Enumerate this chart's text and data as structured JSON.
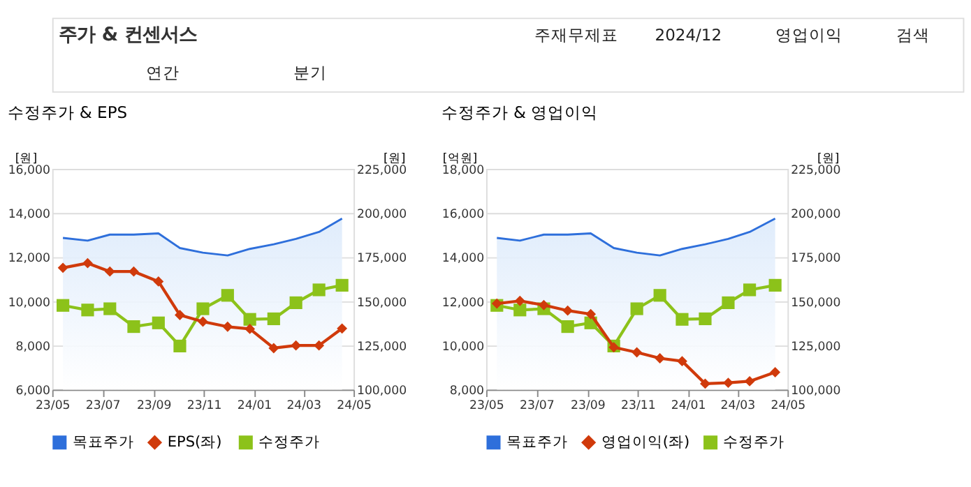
{
  "chart_data": [
    {
      "type": "line",
      "title": "수정주가 & EPS",
      "ylabel": "[원]",
      "y2label": "[원]",
      "annotations": [
        "주가 & 컨센서스",
        "주재무제표",
        "2024/12",
        "영업이익",
        "검색",
        "연간",
        "분기"
      ],
      "x": [
        "2023-05-14",
        "2023-06-13",
        "2023-07-10",
        "2023-08-08",
        "2023-09-07",
        "2023-10-03",
        "2023-10-31",
        "2023-11-30",
        "2023-12-27",
        "2024-01-25",
        "2024-02-21",
        "2024-03-20",
        "2024-04-17"
      ],
      "xlim": [
        "2023-05-01",
        "2024-05-01"
      ],
      "xticks": [
        {
          "value": "2023-05-01",
          "label": "23/05"
        },
        {
          "value": "2023-07-01",
          "label": "23/07"
        },
        {
          "value": "2023-09-01",
          "label": "23/09"
        },
        {
          "value": "2023-11-01",
          "label": "23/11"
        },
        {
          "value": "2024-01-01",
          "label": "24/01"
        },
        {
          "value": "2024-03-01",
          "label": "24/03"
        },
        {
          "value": "2024-05-01",
          "label": "24/05"
        }
      ],
      "ylim": [
        6000,
        16000
      ],
      "yticks": [
        {
          "value": 6000,
          "label": "6,000"
        },
        {
          "value": 8000,
          "label": "8,000"
        },
        {
          "value": 10000,
          "label": "10,000"
        },
        {
          "value": 12000,
          "label": "12,000"
        },
        {
          "value": 14000,
          "label": "14,000"
        },
        {
          "value": 16000,
          "label": "16,000"
        }
      ],
      "y2lim": [
        100000,
        225000
      ],
      "y2ticks": [
        {
          "value": 100000,
          "label": "100,000"
        },
        {
          "value": 125000,
          "label": "125,000"
        },
        {
          "value": 150000,
          "label": "150,000"
        },
        {
          "value": 175000,
          "label": "175,000"
        },
        {
          "value": 200000,
          "label": "200,000"
        },
        {
          "value": 225000,
          "label": "225,000"
        }
      ],
      "grid": "y",
      "legend": "bottom",
      "series": [
        {
          "name": "목표주가",
          "type": "area",
          "axis": "y2",
          "marker": "none",
          "color": "#2e6fdb",
          "values": [
            185900,
            184400,
            187800,
            187800,
            188500,
            180200,
            177600,
            176000,
            179700,
            182300,
            185400,
            189300,
            196900
          ]
        },
        {
          "name": "EPS(좌)",
          "type": "line",
          "axis": "y",
          "marker": "diamond",
          "color": "#d03a0b",
          "values": [
            11520,
            11730,
            11350,
            11350,
            10900,
            9380,
            9080,
            8850,
            8750,
            7880,
            8000,
            8000,
            8770
          ]
        },
        {
          "name": "수정주가",
          "type": "line",
          "axis": "y2",
          "marker": "square",
          "color": "#8cc21a",
          "values": [
            147700,
            145100,
            145800,
            135700,
            137800,
            124700,
            145800,
            153400,
            139800,
            140100,
            149200,
            156500,
            159100
          ]
        }
      ]
    },
    {
      "type": "line",
      "title": "수정주가 & 영업이익",
      "ylabel": "[억원]",
      "y2label": "[원]",
      "x": [
        "2023-05-14",
        "2023-06-11",
        "2023-07-10",
        "2023-08-08",
        "2023-09-05",
        "2023-10-03",
        "2023-10-31",
        "2023-11-28",
        "2023-12-25",
        "2024-01-22",
        "2024-02-19",
        "2024-03-16",
        "2024-04-16"
      ],
      "xlim": [
        "2023-05-01",
        "2024-05-01"
      ],
      "xticks": [
        {
          "value": "2023-05-01",
          "label": "23/05"
        },
        {
          "value": "2023-07-01",
          "label": "23/07"
        },
        {
          "value": "2023-09-01",
          "label": "23/09"
        },
        {
          "value": "2023-11-01",
          "label": "23/11"
        },
        {
          "value": "2024-01-01",
          "label": "24/01"
        },
        {
          "value": "2024-03-01",
          "label": "24/03"
        },
        {
          "value": "2024-05-01",
          "label": "24/05"
        }
      ],
      "ylim": [
        8000,
        18000
      ],
      "yticks": [
        {
          "value": 8000,
          "label": "8,000"
        },
        {
          "value": 10000,
          "label": "10,000"
        },
        {
          "value": 12000,
          "label": "12,000"
        },
        {
          "value": 14000,
          "label": "14,000"
        },
        {
          "value": 16000,
          "label": "16,000"
        },
        {
          "value": 18000,
          "label": "18,000"
        }
      ],
      "y2lim": [
        100000,
        225000
      ],
      "y2ticks": [
        {
          "value": 100000,
          "label": "100,000"
        },
        {
          "value": 125000,
          "label": "125,000"
        },
        {
          "value": 150000,
          "label": "150,000"
        },
        {
          "value": 175000,
          "label": "175,000"
        },
        {
          "value": 200000,
          "label": "200,000"
        },
        {
          "value": 225000,
          "label": "225,000"
        }
      ],
      "grid": "y",
      "legend": "bottom",
      "series": [
        {
          "name": "목표주가",
          "type": "area",
          "axis": "y2",
          "marker": "none",
          "color": "#2e6fdb",
          "values": [
            185900,
            184400,
            187800,
            187800,
            188500,
            180200,
            177600,
            176000,
            179700,
            182300,
            185400,
            189300,
            196900
          ]
        },
        {
          "name": "영업이익(좌)",
          "type": "line",
          "axis": "y",
          "marker": "diamond",
          "color": "#d03a0b",
          "values": [
            11900,
            12020,
            11830,
            11580,
            11420,
            9920,
            9690,
            9420,
            9290,
            8270,
            8310,
            8380,
            8790
          ]
        },
        {
          "name": "수정주가",
          "type": "line",
          "axis": "y2",
          "marker": "square",
          "color": "#8cc21a",
          "values": [
            147700,
            145100,
            145800,
            135700,
            137800,
            124700,
            145800,
            153400,
            139800,
            140100,
            149200,
            156500,
            159100
          ]
        }
      ]
    }
  ]
}
